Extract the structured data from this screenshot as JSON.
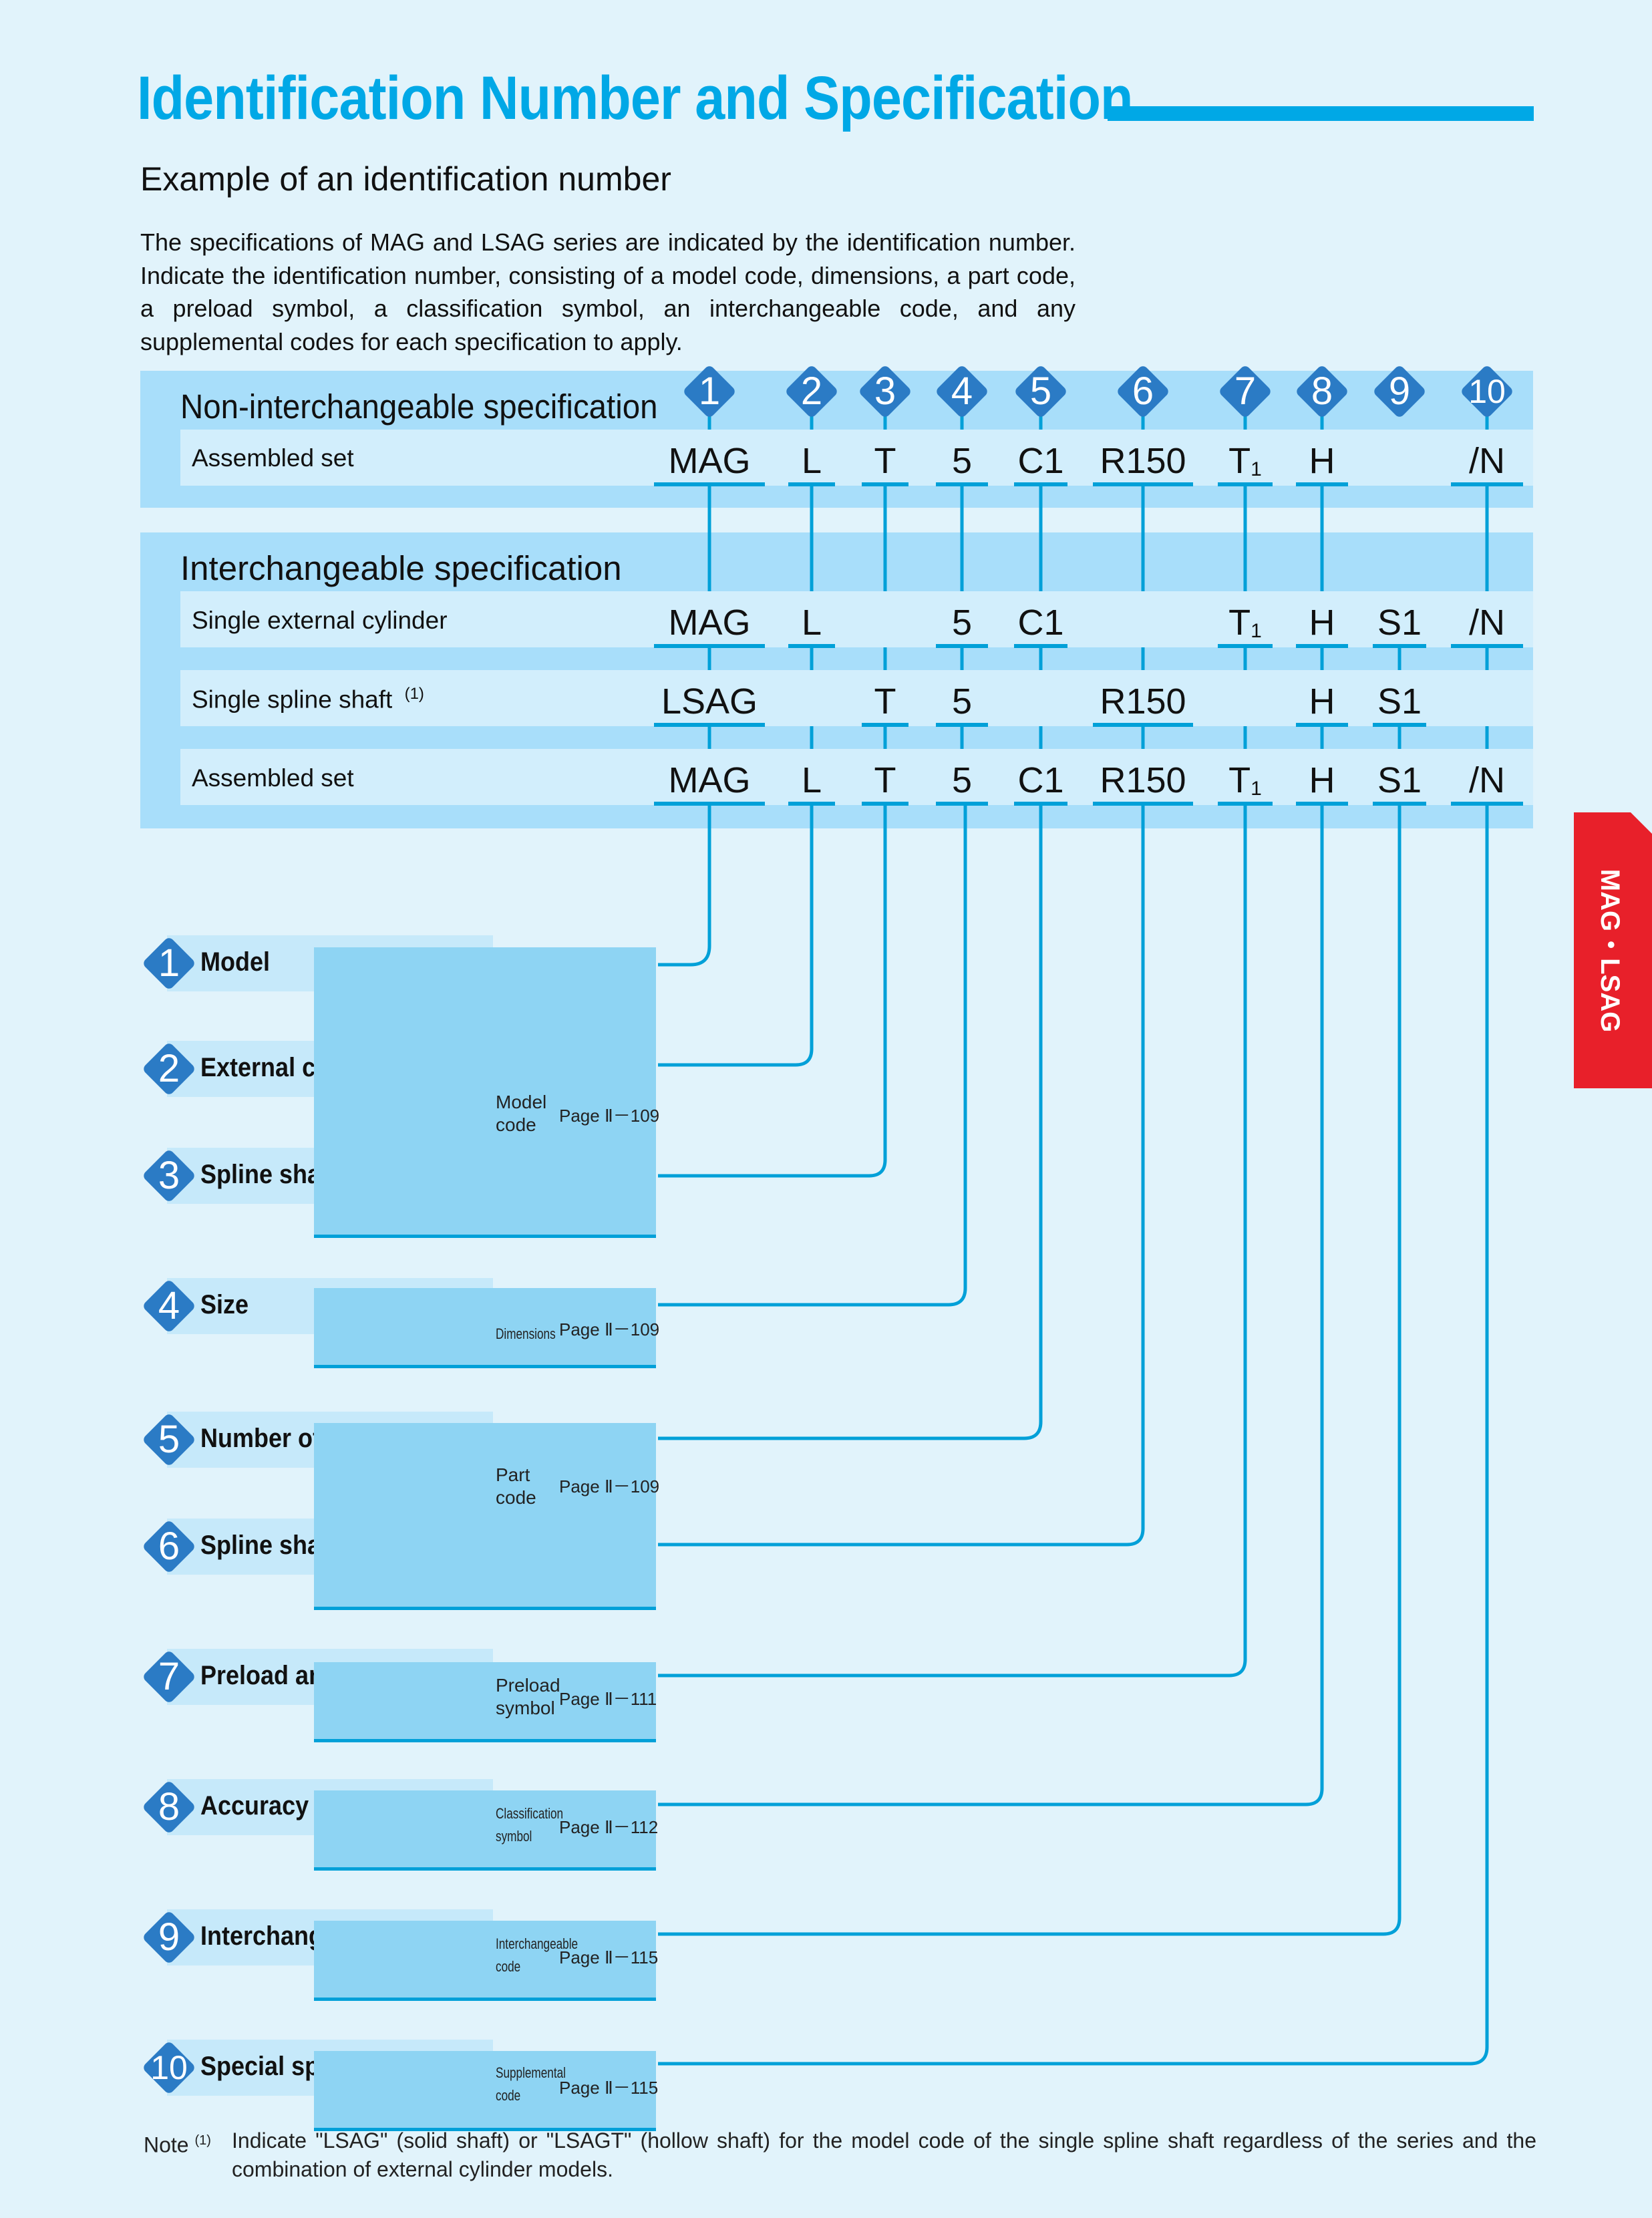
{
  "title": "Identification Number and Specification",
  "subtitle": "Example of an identification number",
  "intro": "The specifications of MAG and LSAG series are indicated by the identification number. Indicate the identification number, consisting of a model code, dimensions, a part code, a preload symbol, a classification symbol, an interchangeable code, and any supplemental codes for each specification to apply.",
  "badges": [
    "1",
    "2",
    "3",
    "4",
    "5",
    "6",
    "7",
    "8",
    "9",
    "10"
  ],
  "non_interchangeable": {
    "heading": "Non-interchangeable specification",
    "rows": [
      {
        "label": "Assembled set",
        "codes": [
          "MAG",
          "L",
          "T",
          "5",
          "C1",
          "R150",
          "T1",
          "H",
          "",
          "/N"
        ]
      }
    ]
  },
  "interchangeable": {
    "heading": "Interchangeable specification",
    "rows": [
      {
        "label": "Single external cylinder",
        "codes": [
          "MAG",
          "L",
          "",
          "5",
          "C1",
          "",
          "T1",
          "H",
          "S1",
          "/N"
        ]
      },
      {
        "label": "Single spline shaft",
        "note_mark": "(1)",
        "codes": [
          "LSAG",
          "",
          "T",
          "5",
          "",
          "R150",
          "",
          "H",
          "S1",
          ""
        ]
      },
      {
        "label": "Assembled set",
        "codes": [
          "MAG",
          "L",
          "T",
          "5",
          "C1",
          "R150",
          "T1",
          "H",
          "S1",
          "/N"
        ]
      }
    ]
  },
  "items": [
    {
      "num": "1",
      "label": "Model"
    },
    {
      "num": "2",
      "label": "External cylinder length"
    },
    {
      "num": "3",
      "label": "Spline shaft shape"
    },
    {
      "num": "4",
      "label": "Size"
    },
    {
      "num": "5",
      "label": "Number of external cylinders"
    },
    {
      "num": "6",
      "label": "Spline shaft length"
    },
    {
      "num": "7",
      "label": "Preload amount"
    },
    {
      "num": "8",
      "label": "Accuracy class"
    },
    {
      "num": "9",
      "label": "Interchangeable"
    },
    {
      "num": "10",
      "label": "Special specification"
    }
  ],
  "refs": [
    {
      "name_line1": "Model",
      "name_line2": "code",
      "page": "Page Ⅱ－109"
    },
    {
      "name_line1": "Dimensions",
      "name_line2": "",
      "page": "Page Ⅱ－109"
    },
    {
      "name_line1": "Part",
      "name_line2": "code",
      "page": "Page Ⅱ－109"
    },
    {
      "name_line1": "Preload",
      "name_line2": "symbol",
      "page": "Page Ⅱ－111"
    },
    {
      "name_line1": "Classification",
      "name_line2": "symbol",
      "page": "Page Ⅱ－112"
    },
    {
      "name_line1": "Interchangeable",
      "name_line2": "code",
      "page": "Page Ⅱ－115"
    },
    {
      "name_line1": "Supplemental",
      "name_line2": "code",
      "page": "Page Ⅱ－115"
    }
  ],
  "side_tab": "MAG・LSAG",
  "note": {
    "label": "Note",
    "mark": "(1)",
    "text": "Indicate \"LSAG\" (solid shaft) or \"LSAGT\" (hollow shaft) for the model code of the single spline shaft regardless of the series and the combination of external cylinder models."
  },
  "colors": {
    "accent": "#00a8e6",
    "badge": "#2b7bc5",
    "tab": "#e8202a",
    "line": "#00a0d8"
  }
}
